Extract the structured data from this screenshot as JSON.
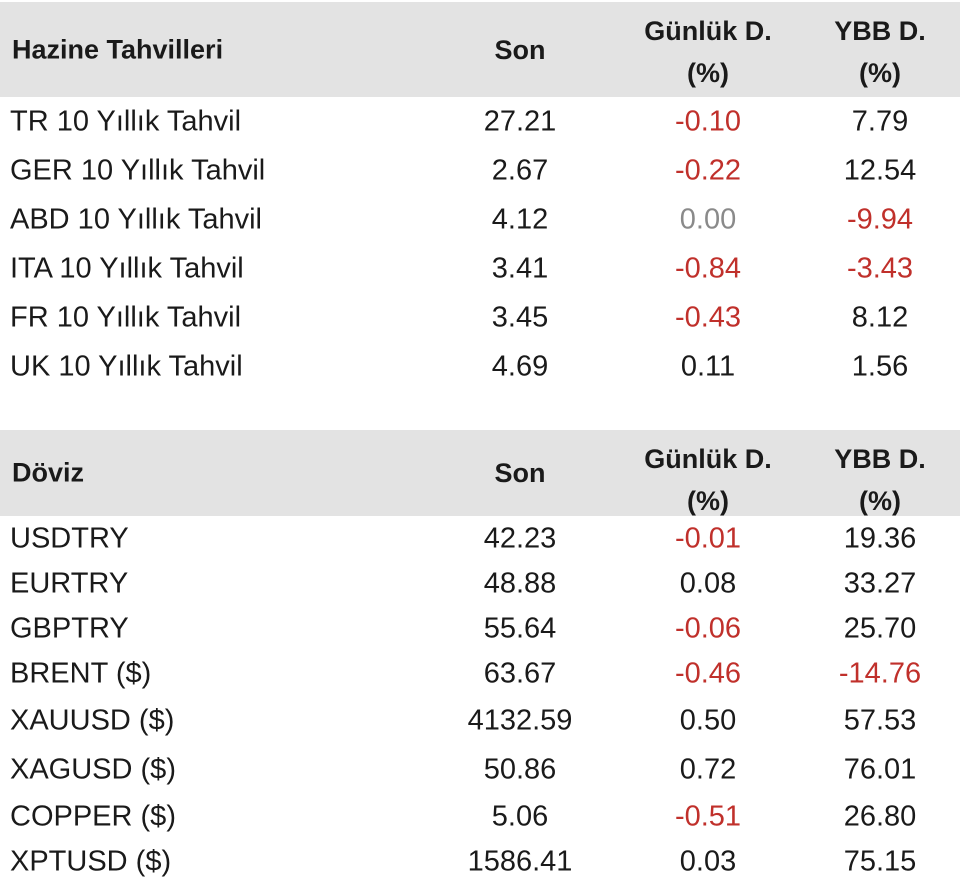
{
  "bonds": {
    "header": {
      "title": "Hazine Tahvilleri",
      "son": "Son",
      "daily_l1": "Günlük D.",
      "daily_l2": "(%)",
      "ytd_l1": "YBB D.",
      "ytd_l2": "(%)"
    },
    "rows": [
      {
        "name": "TR 10 Yıllık Tahvil",
        "son": "27.21",
        "daily": "-0.10",
        "ytd": "7.79"
      },
      {
        "name": "GER 10 Yıllık Tahvil",
        "son": "2.67",
        "daily": "-0.22",
        "ytd": "12.54"
      },
      {
        "name": "ABD 10 Yıllık Tahvil",
        "son": "4.12",
        "daily": "0.00",
        "ytd": "-9.94"
      },
      {
        "name": "ITA 10 Yıllık Tahvil",
        "son": "3.41",
        "daily": "-0.84",
        "ytd": "-3.43"
      },
      {
        "name": "FR 10 Yıllık Tahvil",
        "son": "3.45",
        "daily": "-0.43",
        "ytd": "8.12"
      },
      {
        "name": "UK 10 Yıllık Tahvil",
        "son": "4.69",
        "daily": "0.11",
        "ytd": "1.56"
      }
    ]
  },
  "fx": {
    "header": {
      "title": "Döviz",
      "son": "Son",
      "daily_l1": "Günlük D.",
      "daily_l2": "(%)",
      "ytd_l1": "YBB D.",
      "ytd_l2": "(%)"
    },
    "rows": [
      {
        "name": "USDTRY",
        "son": "42.23",
        "daily": "-0.01",
        "ytd": "19.36"
      },
      {
        "name": "EURTRY",
        "son": "48.88",
        "daily": "0.08",
        "ytd": "33.27"
      },
      {
        "name": "GBPTRY",
        "son": "55.64",
        "daily": "-0.06",
        "ytd": "25.70"
      },
      {
        "name": "BRENT ($)",
        "son": "63.67",
        "daily": "-0.46",
        "ytd": "-14.76"
      },
      {
        "name": "XAUUSD ($)",
        "son": "4132.59",
        "daily": "0.50",
        "ytd": "57.53"
      },
      {
        "name": "XAGUSD ($)",
        "son": "50.86",
        "daily": "0.72",
        "ytd": "76.01"
      },
      {
        "name": "COPPER ($)",
        "son": "5.06",
        "daily": "-0.51",
        "ytd": "26.80"
      },
      {
        "name": "XPTUSD ($)",
        "son": "1586.41",
        "daily": "0.03",
        "ytd": "75.15"
      }
    ]
  },
  "colors": {
    "negative": "#c0302b",
    "zero": "#8a8a8a",
    "header_bg": "#e3e3e3",
    "text": "#1a1a1a"
  }
}
